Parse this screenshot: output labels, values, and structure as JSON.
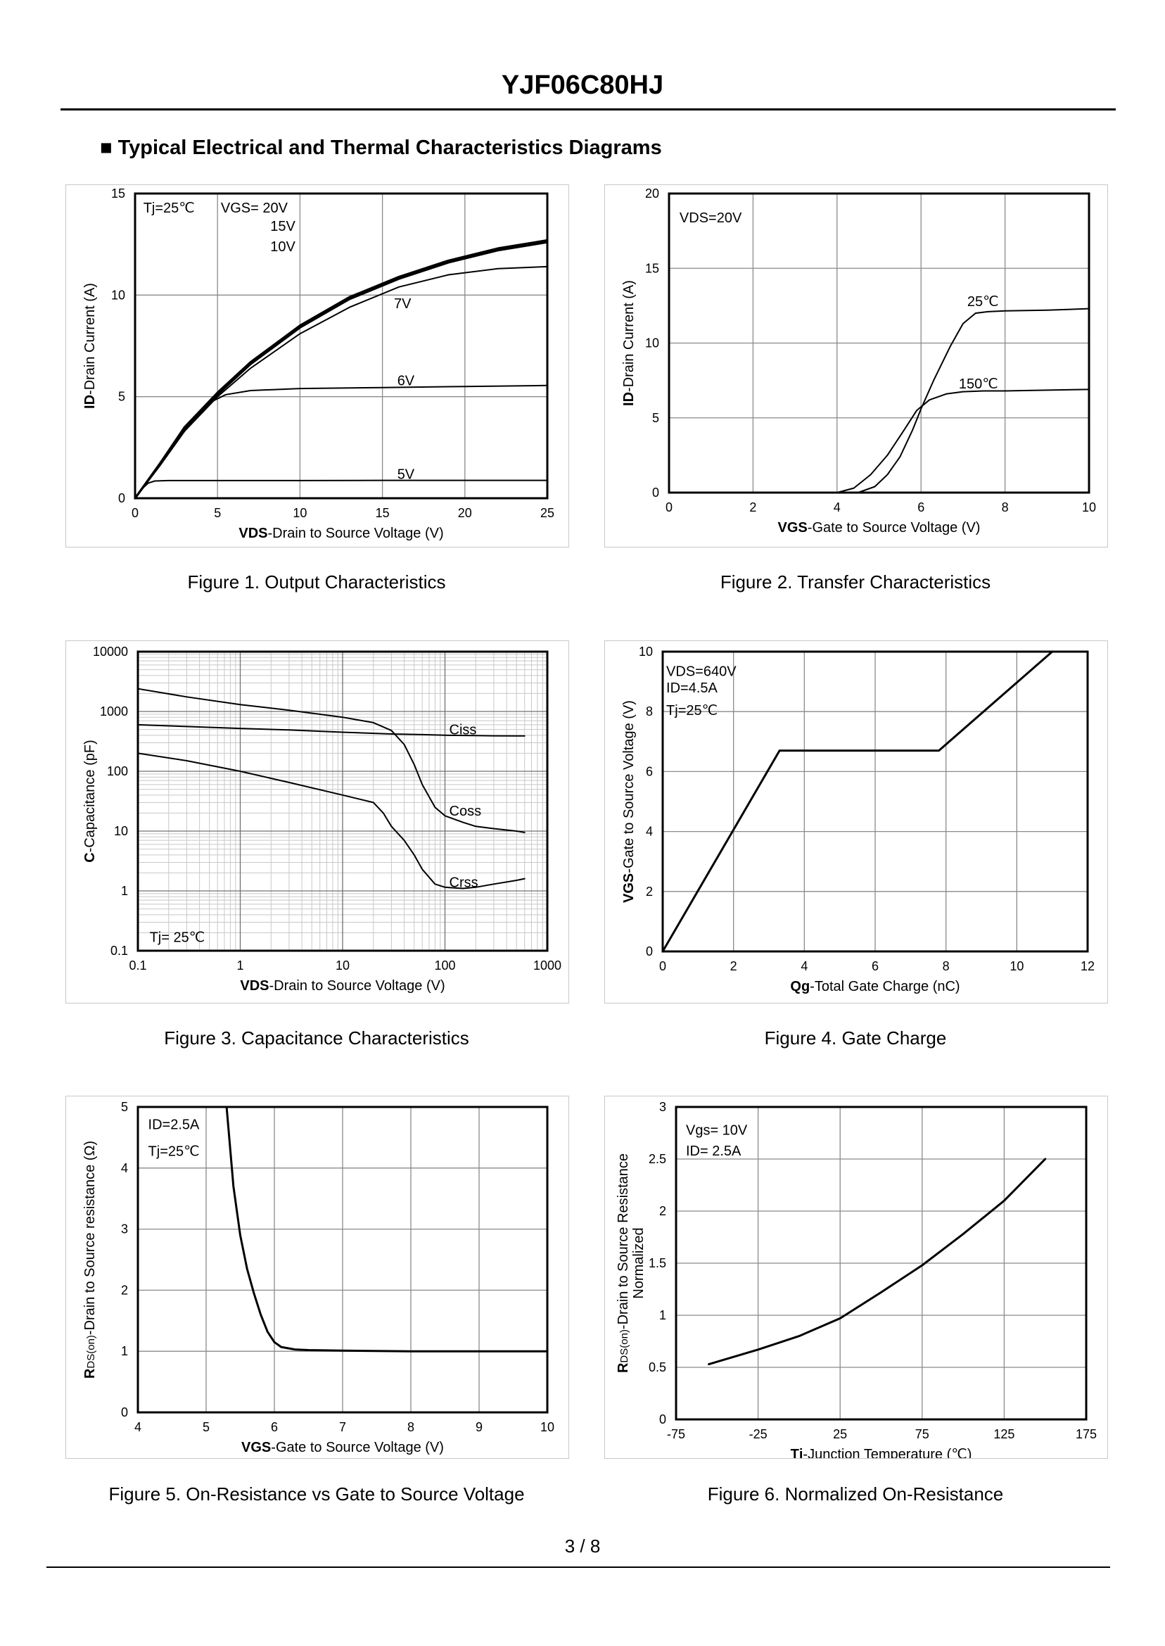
{
  "header": {
    "title": "YJF06C80HJ"
  },
  "section": {
    "title": "■ Typical Electrical and Thermal Characteristics Diagrams"
  },
  "footer": {
    "page": "3 / 8"
  },
  "chart_data": [
    {
      "id": "fig1",
      "type": "line",
      "caption": "Figure 1.  Output Characteristics",
      "xlabel_bold": "VDS",
      "xlabel_rest": "-Drain to Source Voltage (V)",
      "ylabel_bold": "ID",
      "ylabel_rest": "-Drain Current (A)",
      "xlim": [
        0,
        25
      ],
      "ylim": [
        0,
        15
      ],
      "xticks": [
        0,
        5,
        10,
        15,
        20,
        25
      ],
      "xtick_labels": [
        "0",
        "5",
        "10",
        "15",
        "20",
        "25"
      ],
      "yticks": [
        0,
        5,
        10,
        15
      ],
      "ytick_labels": [
        "0",
        "5",
        "10",
        "15"
      ],
      "xgrid": [
        0,
        5,
        10,
        15,
        20,
        25
      ],
      "ygrid": [
        0,
        5,
        10,
        15
      ],
      "annotations": [
        {
          "text": "Tj=25℃",
          "x": 0.5,
          "y": 14.3
        },
        {
          "text": "VGS= 20V",
          "x": 5.2,
          "y": 14.3
        },
        {
          "text": "15V",
          "x": 8.2,
          "y": 13.4
        },
        {
          "text": "10V",
          "x": 8.2,
          "y": 12.4
        },
        {
          "text": "7V",
          "x": 15.7,
          "y": 9.6
        },
        {
          "text": "6V",
          "x": 15.9,
          "y": 5.8
        },
        {
          "text": "5V",
          "x": 15.9,
          "y": 1.2
        }
      ],
      "series": [
        {
          "name": "VGS=20V",
          "width": 3,
          "x": [
            0,
            1.5,
            3,
            5,
            7,
            10,
            13,
            16,
            19,
            22,
            25
          ],
          "y": [
            0,
            1.7,
            3.5,
            5.2,
            6.7,
            8.5,
            9.9,
            10.9,
            11.7,
            12.3,
            12.7
          ]
        },
        {
          "name": "VGS=15V",
          "width": 3,
          "x": [
            0,
            1.5,
            3,
            5,
            7,
            10,
            13,
            16,
            19,
            22,
            25
          ],
          "y": [
            0,
            1.7,
            3.45,
            5.15,
            6.65,
            8.45,
            9.85,
            10.85,
            11.65,
            12.25,
            12.65
          ]
        },
        {
          "name": "VGS=10V",
          "width": 3,
          "x": [
            0,
            1.5,
            3,
            5,
            7,
            10,
            13,
            16,
            19,
            22,
            25
          ],
          "y": [
            0,
            1.65,
            3.4,
            5.1,
            6.6,
            8.4,
            9.8,
            10.8,
            11.6,
            12.2,
            12.6
          ]
        },
        {
          "name": "VGS=7V",
          "width": 2,
          "x": [
            0,
            1.5,
            3,
            5,
            7,
            10,
            13,
            16,
            19,
            22,
            25
          ],
          "y": [
            0,
            1.6,
            3.3,
            5.0,
            6.4,
            8.1,
            9.4,
            10.4,
            11.0,
            11.3,
            11.4
          ]
        },
        {
          "name": "VGS=6V",
          "width": 2,
          "x": [
            0,
            1.5,
            3,
            4.5,
            5.5,
            7,
            10,
            15,
            20,
            25
          ],
          "y": [
            0,
            1.6,
            3.3,
            4.7,
            5.1,
            5.3,
            5.4,
            5.45,
            5.5,
            5.55
          ]
        },
        {
          "name": "VGS=5V",
          "width": 2,
          "x": [
            0,
            0.4,
            0.8,
            1.2,
            2,
            5,
            10,
            15,
            20,
            25
          ],
          "y": [
            0,
            0.45,
            0.75,
            0.85,
            0.87,
            0.87,
            0.87,
            0.88,
            0.88,
            0.88
          ]
        }
      ]
    },
    {
      "id": "fig2",
      "type": "line",
      "caption": "Figure 2.  Transfer Characteristics",
      "xlabel_bold": "VGS",
      "xlabel_rest": "-Gate to Source Voltage (V)",
      "ylabel_bold": "ID",
      "ylabel_rest": "-Drain Current (A)",
      "xlim": [
        0,
        10
      ],
      "ylim": [
        0,
        20
      ],
      "xticks": [
        0,
        2,
        4,
        6,
        8,
        10
      ],
      "xtick_labels": [
        "0",
        "2",
        "4",
        "6",
        "8",
        "10"
      ],
      "yticks": [
        0,
        5,
        10,
        15,
        20
      ],
      "ytick_labels": [
        "0",
        "5",
        "10",
        "15",
        "20"
      ],
      "xgrid": [
        0,
        2,
        4,
        6,
        8,
        10
      ],
      "ygrid": [
        0,
        5,
        10,
        15,
        20
      ],
      "annotations": [
        {
          "text": "VDS=20V",
          "x": 0.25,
          "y": 18.4
        },
        {
          "text": "25℃",
          "x": 7.1,
          "y": 12.8
        },
        {
          "text": "150℃",
          "x": 6.9,
          "y": 7.3
        }
      ],
      "series": [
        {
          "name": "25℃",
          "width": 2,
          "x": [
            4.5,
            4.9,
            5.2,
            5.5,
            5.8,
            6.0,
            6.3,
            6.7,
            7.0,
            7.3,
            7.6,
            8,
            9,
            10
          ],
          "y": [
            0,
            0.4,
            1.2,
            2.4,
            4.2,
            5.6,
            7.5,
            9.8,
            11.3,
            12.0,
            12.1,
            12.15,
            12.2,
            12.3
          ]
        },
        {
          "name": "150℃",
          "width": 2,
          "x": [
            4.0,
            4.4,
            4.8,
            5.2,
            5.6,
            5.9,
            6.2,
            6.6,
            7.0,
            7.5,
            8,
            9,
            10
          ],
          "y": [
            0,
            0.3,
            1.2,
            2.5,
            4.2,
            5.5,
            6.2,
            6.6,
            6.75,
            6.8,
            6.8,
            6.85,
            6.9
          ]
        }
      ]
    },
    {
      "id": "fig3",
      "type": "line",
      "caption": "Figure 3.  Capacitance Characteristics",
      "log": true,
      "xlabel_bold": "VDS",
      "xlabel_rest": "-Drain to Source Voltage (V)",
      "ylabel_bold": "C",
      "ylabel_rest": "-Capacitance (pF)",
      "xlim": [
        0.1,
        1000
      ],
      "ylim": [
        0.1,
        10000
      ],
      "xticks": [
        0.1,
        1,
        10,
        100,
        1000
      ],
      "xtick_labels": [
        "0.1",
        "1",
        "10",
        "100",
        "1000"
      ],
      "yticks": [
        0.1,
        1,
        10,
        100,
        1000,
        10000
      ],
      "ytick_labels": [
        "0.1",
        "1",
        "10",
        "100",
        "1000",
        "10000"
      ],
      "annotations": [
        {
          "text": "Ciss",
          "x": 110,
          "y": 500
        },
        {
          "text": "Coss",
          "x": 110,
          "y": 22
        },
        {
          "text": "Crss",
          "x": 110,
          "y": 1.4
        },
        {
          "text": "Tj= 25℃",
          "x": 0.13,
          "y": 0.17
        }
      ],
      "series": [
        {
          "name": "Ciss",
          "width": 2,
          "x": [
            0.1,
            0.3,
            1,
            3,
            10,
            20,
            30,
            40,
            50,
            60,
            80,
            100,
            150,
            200,
            300,
            500,
            600
          ],
          "y": [
            2400,
            1750,
            1300,
            1050,
            800,
            650,
            480,
            280,
            130,
            60,
            25,
            18,
            14,
            12,
            11,
            10,
            9.5
          ]
        },
        {
          "name": "Coss",
          "width": 2,
          "x": [
            0.1,
            0.3,
            1,
            3,
            10,
            30,
            60,
            100,
            200,
            300,
            500,
            600
          ],
          "y": [
            600,
            560,
            520,
            490,
            450,
            420,
            410,
            400,
            395,
            392,
            390,
            390
          ]
        },
        {
          "name": "Crss",
          "width": 2,
          "x": [
            0.1,
            0.3,
            1,
            3,
            10,
            20,
            25,
            30,
            40,
            50,
            60,
            80,
            100,
            150,
            200,
            300,
            500,
            600
          ],
          "y": [
            200,
            150,
            100,
            65,
            40,
            30,
            20,
            12,
            7,
            4,
            2.3,
            1.3,
            1.15,
            1.1,
            1.15,
            1.3,
            1.5,
            1.6
          ]
        }
      ]
    },
    {
      "id": "fig4",
      "type": "line",
      "caption": "Figure 4.  Gate Charge",
      "xlabel_bold": "Qg",
      "xlabel_rest": "-Total Gate Charge (nC)",
      "ylabel_bold": "VGS",
      "ylabel_rest": "-Gate to Source Voltage (V)",
      "xlim": [
        0,
        12
      ],
      "ylim": [
        0,
        10
      ],
      "xticks": [
        0,
        2,
        4,
        6,
        8,
        10,
        12
      ],
      "xtick_labels": [
        "0",
        "2",
        "4",
        "6",
        "8",
        "10",
        "12"
      ],
      "yticks": [
        0,
        2,
        4,
        6,
        8,
        10
      ],
      "ytick_labels": [
        "0",
        "2",
        "4",
        "6",
        "8",
        "10"
      ],
      "xgrid": [
        0,
        2,
        4,
        6,
        8,
        10,
        12
      ],
      "ygrid": [
        0,
        2,
        4,
        6,
        8,
        10
      ],
      "annotations": [
        {
          "text": "VDS=640V",
          "x": 0.1,
          "y": 9.35
        },
        {
          "text": "ID=4.5A",
          "x": 0.1,
          "y": 8.8
        },
        {
          "text": "Tj=25℃",
          "x": 0.1,
          "y": 8.05
        }
      ],
      "series": [
        {
          "name": "VGS",
          "width": 3,
          "x": [
            0,
            3.3,
            7.8,
            11
          ],
          "y": [
            0,
            6.7,
            6.7,
            10
          ]
        }
      ]
    },
    {
      "id": "fig5",
      "type": "line",
      "caption": "Figure 5.  On-Resistance vs Gate to Source Voltage",
      "xlabel_bold": "VGS",
      "xlabel_rest": "-Gate to Source Voltage (V)",
      "ylabel_bold": "R",
      "ylabel_sub": "DS(on)",
      "ylabel_rest": "-Drain to Source resistance (Ω)",
      "xlim": [
        4,
        10
      ],
      "ylim": [
        0,
        5
      ],
      "xticks": [
        4,
        5,
        6,
        7,
        8,
        9,
        10
      ],
      "xtick_labels": [
        "4",
        "5",
        "6",
        "7",
        "8",
        "9",
        "10"
      ],
      "yticks": [
        0,
        1,
        2,
        3,
        4,
        5
      ],
      "ytick_labels": [
        "0",
        "1",
        "2",
        "3",
        "4",
        "5"
      ],
      "xgrid": [
        4,
        5,
        6,
        7,
        8,
        9,
        10
      ],
      "ygrid": [
        0,
        1,
        2,
        3,
        4,
        5
      ],
      "annotations": [
        {
          "text": "ID=2.5A",
          "x": 4.15,
          "y": 4.72
        },
        {
          "text": "Tj=25℃",
          "x": 4.15,
          "y": 4.28
        }
      ],
      "series": [
        {
          "name": "RDS(on)",
          "width": 3,
          "x": [
            5.3,
            5.4,
            5.5,
            5.6,
            5.7,
            5.8,
            5.9,
            6.0,
            6.1,
            6.3,
            6.5,
            7,
            8,
            9,
            10
          ],
          "y": [
            5,
            3.7,
            2.9,
            2.35,
            1.95,
            1.6,
            1.32,
            1.15,
            1.07,
            1.03,
            1.02,
            1.01,
            1.0,
            1.0,
            1.0
          ]
        }
      ]
    },
    {
      "id": "fig6",
      "type": "line",
      "caption": "Figure 6.  Normalized On-Resistance",
      "xlabel_bold": "Tj",
      "xlabel_rest": "-Junction  Temperature (℃)",
      "ylabel_bold": "R",
      "ylabel_sub": "DS(on)",
      "ylabel_rest": "-Drain to Source Resistance",
      "ylabel_line2": "Normalized",
      "xlim": [
        -75,
        175
      ],
      "ylim": [
        0,
        3
      ],
      "xticks": [
        -75,
        -25,
        25,
        75,
        125,
        175
      ],
      "xtick_labels": [
        "-75",
        "-25",
        "25",
        "75",
        "125",
        "175"
      ],
      "yticks": [
        0,
        0.5,
        1,
        1.5,
        2,
        2.5,
        3
      ],
      "ytick_labels": [
        "0",
        "0.5",
        "1",
        "1.5",
        "2",
        "2.5",
        "3"
      ],
      "xgrid": [
        -75,
        -25,
        25,
        75,
        125,
        175
      ],
      "ygrid": [
        0,
        0.5,
        1,
        1.5,
        2,
        2.5,
        3
      ],
      "annotations": [
        {
          "text": "Vgs= 10V",
          "x": -69,
          "y": 2.78
        },
        {
          "text": "ID= 2.5A",
          "x": -69,
          "y": 2.58
        }
      ],
      "series": [
        {
          "name": "Normalized RDS(on)",
          "width": 3,
          "x": [
            -55,
            -25,
            0,
            25,
            50,
            75,
            100,
            125,
            150
          ],
          "y": [
            0.53,
            0.67,
            0.8,
            0.97,
            1.22,
            1.48,
            1.78,
            2.1,
            2.5
          ]
        }
      ]
    }
  ]
}
